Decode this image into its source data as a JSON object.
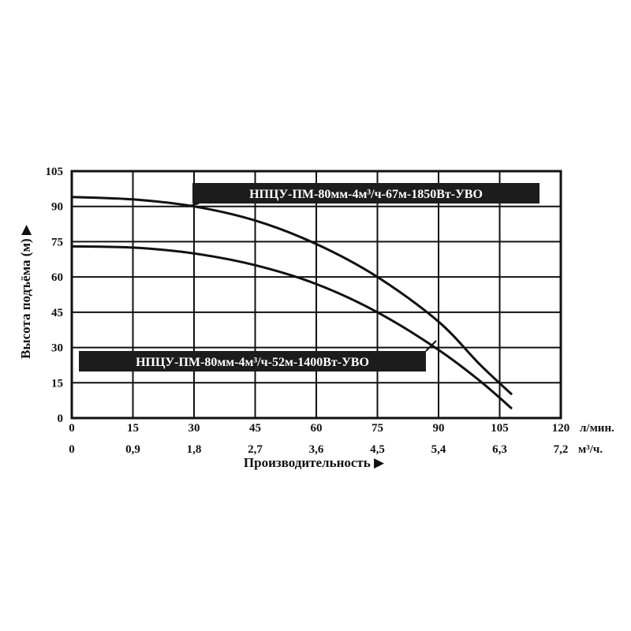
{
  "chart_data": {
    "type": "line",
    "title": "",
    "ylabel": "Высота подъёма (м) ▶",
    "xlabel": "Производительность ▶",
    "x_unit_primary": "л/мин.",
    "x_unit_secondary": "м³/ч.",
    "xlim": [
      0,
      120
    ],
    "ylim": [
      0,
      105
    ],
    "grid": true,
    "x_ticks_primary": [
      "0",
      "15",
      "30",
      "45",
      "60",
      "75",
      "90",
      "105",
      "120"
    ],
    "x_ticks_secondary": [
      "0",
      "0,9",
      "1,8",
      "2,7",
      "3,6",
      "4,5",
      "5,4",
      "6,3",
      "7,2"
    ],
    "y_ticks": [
      "0",
      "15",
      "30",
      "45",
      "60",
      "75",
      "90",
      "105"
    ],
    "series": [
      {
        "name": "НПЦУ-ПМ-80мм-4м³/ч-67м-1850Вт-УВО",
        "x": [
          0,
          15,
          30,
          45,
          60,
          75,
          90,
          100,
          108
        ],
        "y": [
          94,
          93,
          90,
          84,
          74,
          60,
          41,
          23,
          10
        ]
      },
      {
        "name": "НПЦУ-ПМ-80мм-4м³/ч-52м-1400Вт-УВО",
        "x": [
          0,
          15,
          30,
          45,
          60,
          75,
          90,
          100,
          108
        ],
        "y": [
          73,
          72.5,
          70,
          65,
          57,
          45,
          29,
          16,
          4
        ]
      }
    ]
  }
}
